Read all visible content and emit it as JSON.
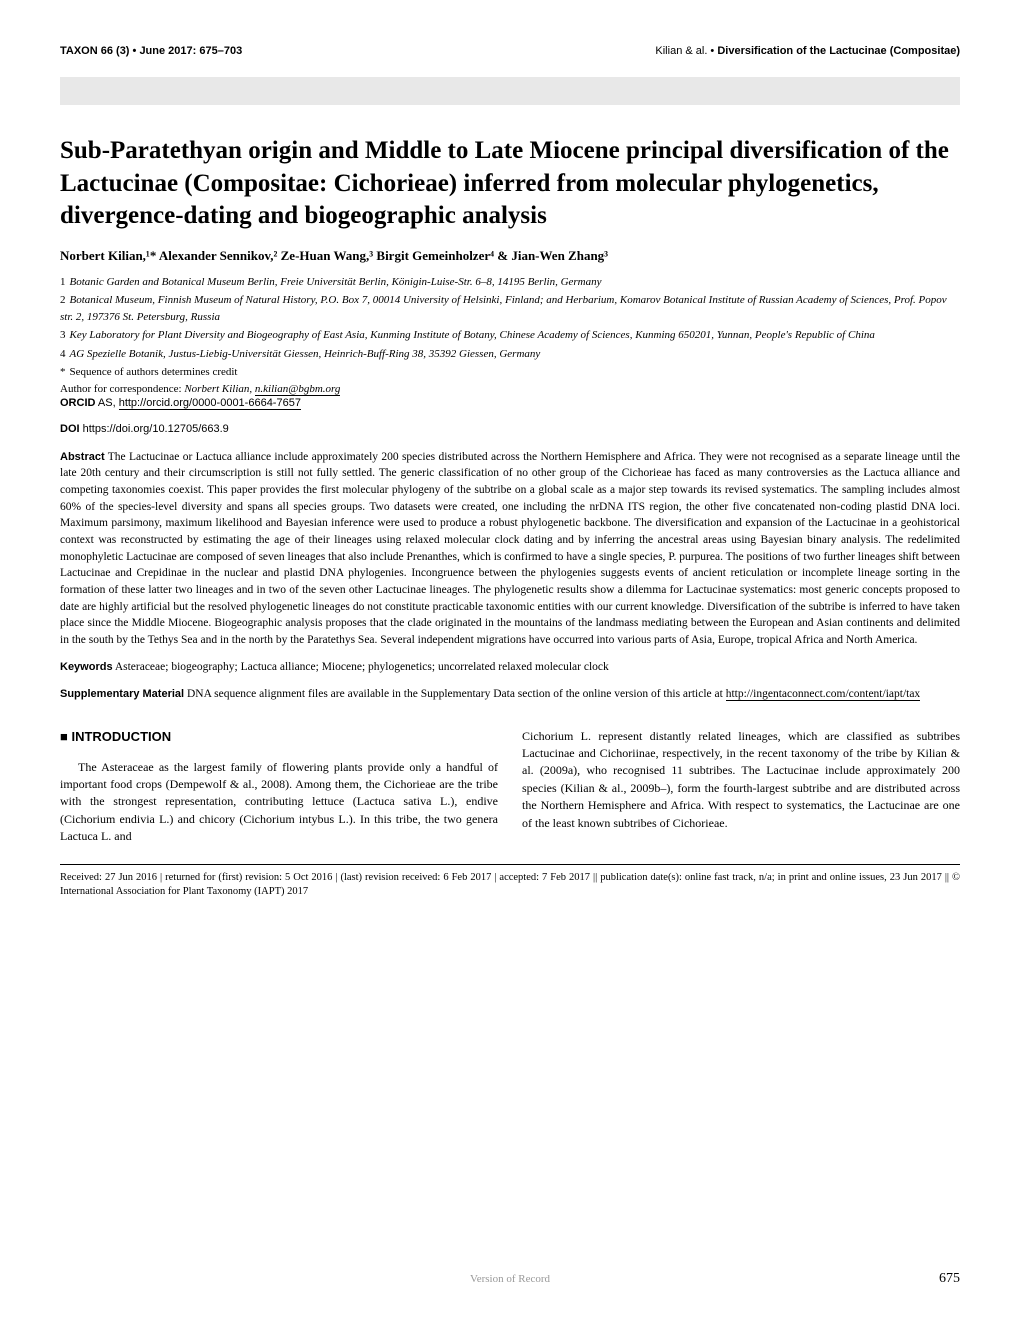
{
  "header": {
    "left": "TAXON 66 (3) • June 2017: 675–703",
    "right_prefix": "Kilian & al. • ",
    "right_bold": "Diversification of the Lactucinae (Compositae)"
  },
  "title": "Sub-Paratethyan origin and Middle to Late Miocene principal diversification of the Lactucinae (Compositae: Cichorieae) inferred from molecular phylogenetics, divergence-dating and biogeographic analysis",
  "authors": "Norbert Kilian,¹* Alexander Sennikov,² Ze-Huan Wang,³ Birgit Gemeinholzer⁴ & Jian-Wen Zhang³",
  "affiliations": [
    "Botanic Garden and Botanical Museum Berlin, Freie Universität Berlin, Königin-Luise-Str. 6–8, 14195 Berlin, Germany",
    "Botanical Museum, Finnish Museum of Natural History, P.O. Box 7, 00014 University of Helsinki, Finland; and Herbarium, Komarov Botanical Institute of Russian Academy of Sciences, Prof. Popov str. 2, 197376 St. Petersburg, Russia",
    "Key Laboratory for Plant Diversity and Biogeography of East Asia, Kunming Institute of Botany, Chinese Academy of Sciences, Kunming 650201, Yunnan, People's Republic of China",
    "AG Spezielle Botanik, Justus-Liebig-Universität Giessen, Heinrich-Buff-Ring 38, 35392 Giessen, Germany"
  ],
  "aff_numbers": [
    "1",
    "2",
    "3",
    "4"
  ],
  "seq_note": "Sequence of authors determines credit",
  "correspondence_prefix": "Author for correspondence: ",
  "correspondence_name": "Norbert Kilian, ",
  "correspondence_email": "n.kilian@bgbm.org",
  "orcid_label": "ORCID",
  "orcid_text": " AS, ",
  "orcid_url": "http://orcid.org/0000-0001-6664-7657",
  "doi_label": "DOI",
  "doi_text": " https://doi.org/10.12705/663.9",
  "abstract_label": "Abstract",
  "abstract_text": " The Lactucinae or Lactuca alliance include approximately 200 species distributed across the Northern Hemisphere and Africa. They were not recognised as a separate lineage until the late 20th century and their circumscription is still not fully settled. The generic classification of no other group of the Cichorieae has faced as many controversies as the Lactuca alliance and competing taxonomies coexist. This paper provides the first molecular phylogeny of the subtribe on a global scale as a major step towards its revised systematics. The sampling includes almost 60% of the species-level diversity and spans all species groups. Two datasets were created, one including the nrDNA ITS region, the other five concatenated non-coding plastid DNA loci. Maximum parsimony, maximum likelihood and Bayesian inference were used to produce a robust phylogenetic backbone. The diversification and expansion of the Lactucinae in a geohistorical context was reconstructed by estimating the age of their lineages using relaxed molecular clock dating and by inferring the ancestral areas using Bayesian binary analysis. The redelimited monophyletic Lactucinae are composed of seven lineages that also include Prenanthes, which is confirmed to have a single species, P. purpurea. The positions of two further lineages shift between Lactucinae and Crepidinae in the nuclear and plastid DNA phylogenies. Incongruence between the phylogenies suggests events of ancient reticulation or incomplete lineage sorting in the formation of these latter two lineages and in two of the seven other Lactucinae lineages. The phylogenetic results show a dilemma for Lactucinae systematics: most generic concepts proposed to date are highly artificial but the resolved phylogenetic lineages do not constitute practicable taxonomic entities with our current knowledge. Diversification of the subtribe is inferred to have taken place since the Middle Miocene. Biogeographic analysis proposes that the clade originated in the mountains of the landmass mediating between the European and Asian continents and delimited in the south by the Tethys Sea and in the north by the Paratethys Sea. Several independent migrations have occurred into various parts of Asia, Europe, tropical Africa and North America.",
  "keywords_label": "Keywords",
  "keywords_text": " Asteraceae; biogeography; Lactuca alliance; Miocene; phylogenetics; uncorrelated relaxed molecular clock",
  "supp_label": "Supplementary Material",
  "supp_text": " DNA sequence alignment files are available in the Supplementary Data section of the online version of this article at ",
  "supp_url": "http://ingentaconnect.com/content/iapt/tax",
  "intro_heading": "INTRODUCTION",
  "intro_col1": "The Asteraceae as the largest family of flowering plants provide only a handful of important food crops (Dempewolf & al., 2008). Among them, the Cichorieae are the tribe with the strongest representation, contributing lettuce (Lactuca sativa L.), endive (Cichorium endivia L.) and chicory (Cichorium intybus L.). In this tribe, the two genera Lactuca L. and",
  "intro_col2": "Cichorium L. represent distantly related lineages, which are classified as subtribes Lactucinae and Cichoriinae, respectively, in the recent taxonomy of the tribe by Kilian & al. (2009a), who recognised 11 subtribes. The Lactucinae include approximately 200 species (Kilian & al., 2009b–), form the fourth-largest subtribe and are distributed across the Northern Hemisphere and Africa. With respect to systematics, the Lactucinae are one of the least known subtribes of Cichorieae.",
  "received": "Received: 27 Jun 2016 | returned for (first) revision: 5 Oct 2016 | (last) revision received: 6 Feb 2017 | accepted: 7 Feb 2017 || publication date(s): online fast track, n/a; in print and online issues, 23 Jun 2017 || © International Association for Plant Taxonomy (IAPT) 2017",
  "version": "Version of Record",
  "pagenum": "675"
}
